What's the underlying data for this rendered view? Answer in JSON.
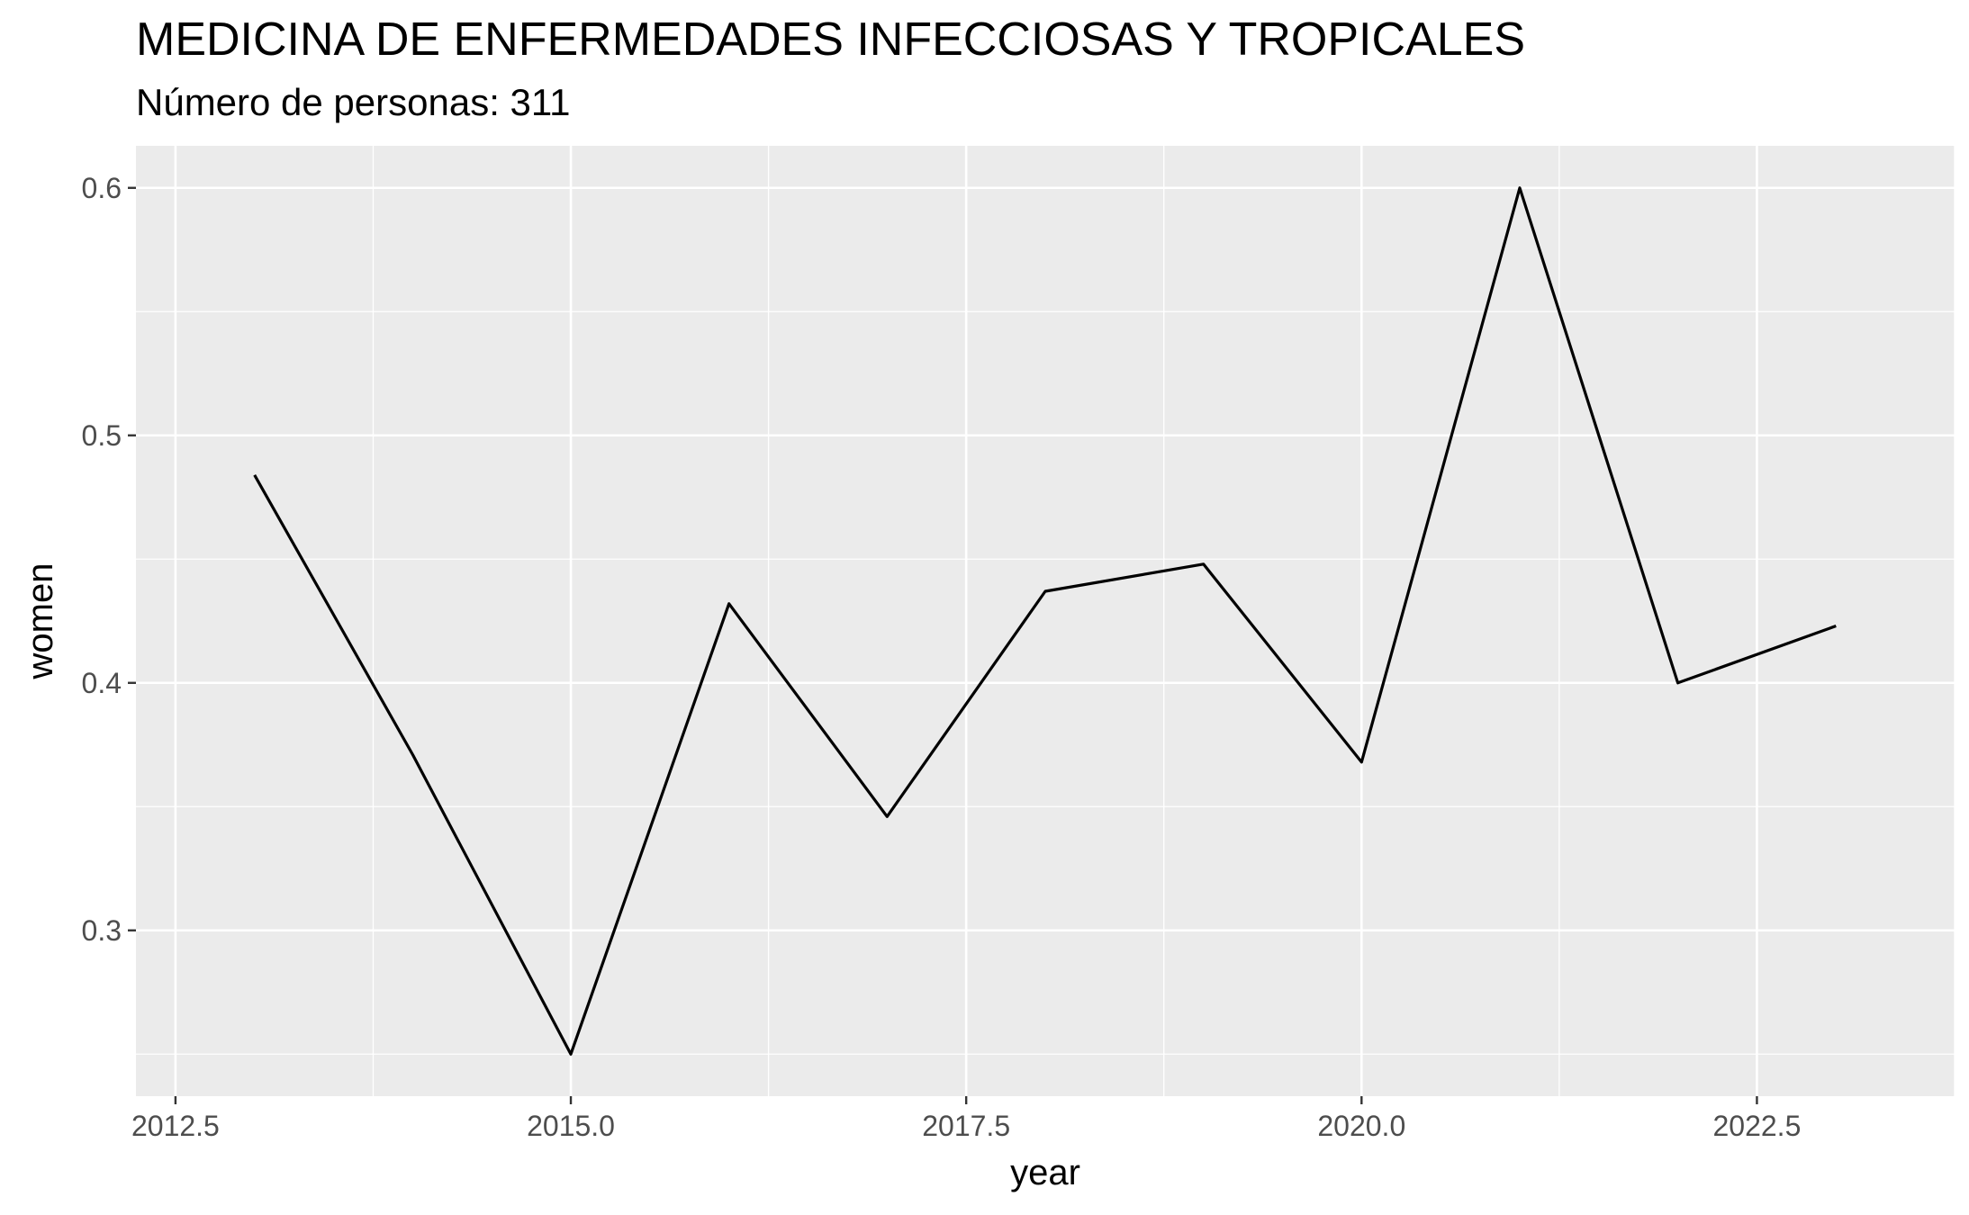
{
  "chart_data": {
    "type": "line",
    "title": "MEDICINA DE ENFERMEDADES INFECCIOSAS Y TROPICALES",
    "subtitle": "Número de personas: 311",
    "xlabel": "year",
    "ylabel": "women",
    "xlim": [
      2012.25,
      2023.75
    ],
    "ylim": [
      0.233,
      0.617
    ],
    "x_ticks": [
      2012.5,
      2015.0,
      2017.5,
      2020.0,
      2022.5
    ],
    "x_tick_labels": [
      "2012.5",
      "2015.0",
      "2017.5",
      "2020.0",
      "2022.5"
    ],
    "y_ticks": [
      0.3,
      0.4,
      0.5,
      0.6
    ],
    "y_tick_labels": [
      "0.3",
      "0.4",
      "0.5",
      "0.6"
    ],
    "grid": true,
    "series": [
      {
        "color": "#000000",
        "x": [
          2013,
          2014,
          2015,
          2016,
          2017,
          2018,
          2019,
          2020,
          2021,
          2022,
          2023
        ],
        "y": [
          0.484,
          0.371,
          0.25,
          0.432,
          0.346,
          0.437,
          0.448,
          0.368,
          0.6,
          0.4,
          0.423
        ]
      }
    ]
  },
  "colors": {
    "panel": "#ebebeb",
    "grid": "#ffffff",
    "line": "#000000",
    "tick_text": "#4d4d4d"
  }
}
